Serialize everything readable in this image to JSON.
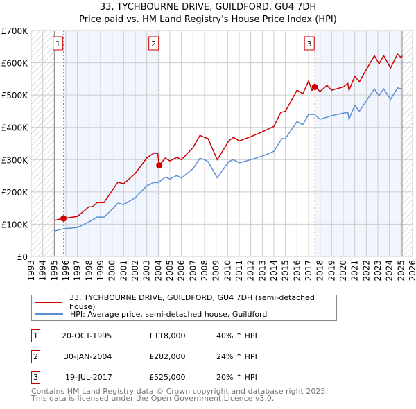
{
  "title": "33, TYCHBOURNE DRIVE, GUILDFORD, GU4 7DH",
  "subtitle": "Price paid vs. HM Land Registry's House Price Index (HPI)",
  "chart_data": {
    "type": "line",
    "title": "33, TYCHBOURNE DRIVE, GUILDFORD, GU4 7DH - Price paid vs. HM Land Registry's House Price Index (HPI)",
    "xlim": [
      1993,
      2026
    ],
    "ylim": [
      0,
      700000
    ],
    "x_ticks": [
      "1993",
      "1994",
      "1995",
      "1996",
      "1997",
      "1998",
      "1999",
      "2000",
      "2001",
      "2002",
      "2003",
      "2004",
      "2005",
      "2006",
      "2007",
      "2008",
      "2009",
      "2010",
      "2011",
      "2012",
      "2013",
      "2014",
      "2015",
      "2016",
      "2017",
      "2018",
      "2019",
      "2020",
      "2021",
      "2022",
      "2023",
      "2024",
      "2025",
      "2026"
    ],
    "y_ticks": [
      {
        "v": 0,
        "label": "£0"
      },
      {
        "v": 100000,
        "label": "£100K"
      },
      {
        "v": 200000,
        "label": "£200K"
      },
      {
        "v": 300000,
        "label": "£300K"
      },
      {
        "v": 400000,
        "label": "£400K"
      },
      {
        "v": 500000,
        "label": "£500K"
      },
      {
        "v": 600000,
        "label": "£600K"
      },
      {
        "v": 700000,
        "label": "£700K"
      }
    ],
    "grid": true,
    "series": [
      {
        "name": "33, TYCHBOURNE DRIVE, GUILDFORD, GU4 7DH (semi-detached house)",
        "color": "#cc0000",
        "x": [
          1995,
          1995.8,
          1997,
          1998,
          1998.3,
          1998.7,
          1999.3,
          2000,
          2000.5,
          2001,
          2002,
          2003,
          2003.6,
          2003.95,
          2004.08,
          2004.6,
          2005,
          2005.6,
          2006,
          2007,
          2007.6,
          2008,
          2008.3,
          2009.1,
          2010.1,
          2010.5,
          2011,
          2012,
          2013,
          2014,
          2014.6,
          2015,
          2016,
          2016.5,
          2017,
          2017.3,
          2017.55,
          2018,
          2018.6,
          2019,
          2020,
          2020.4,
          2020.5,
          2021,
          2021.4,
          2022,
          2022.7,
          2023.1,
          2023.5,
          2024.1,
          2024.7,
          2025,
          2025.1
        ],
        "y": [
          112000,
          118000,
          124000,
          154000,
          154000,
          167000,
          167000,
          204000,
          230000,
          225000,
          257000,
          305000,
          320000,
          320000,
          282000,
          305000,
          296000,
          307000,
          300000,
          337000,
          375000,
          369000,
          365000,
          300000,
          358000,
          369000,
          358000,
          371000,
          386000,
          403000,
          446000,
          450000,
          515000,
          504000,
          543000,
          515000,
          525000,
          511000,
          530000,
          515000,
          525000,
          536000,
          515000,
          558000,
          541000,
          579000,
          622000,
          597000,
          622000,
          584000,
          627000,
          616000,
          622000
        ]
      },
      {
        "name": "HPI: Average price, semi-detached house, Guildford",
        "color": "#5b8fd4",
        "x": [
          1995,
          1995.8,
          1997,
          1998,
          1998.7,
          1999.3,
          2000,
          2000.5,
          2001,
          2002,
          2003,
          2003.6,
          2004,
          2004.6,
          2005,
          2005.6,
          2006,
          2007,
          2007.6,
          2008,
          2008.3,
          2009.1,
          2010.1,
          2010.5,
          2011,
          2012,
          2013,
          2014,
          2014.7,
          2015,
          2016,
          2016.5,
          2017,
          2017.5,
          2018,
          2019,
          2020,
          2020.4,
          2020.5,
          2021,
          2021.4,
          2022,
          2022.7,
          2023.1,
          2023.5,
          2024.1,
          2024.7,
          2025.1
        ],
        "y": [
          79000,
          86000,
          90000,
          107000,
          122000,
          122000,
          146000,
          165000,
          161000,
          182000,
          219000,
          229000,
          229000,
          246000,
          240000,
          251000,
          243000,
          272000,
          304000,
          300000,
          294000,
          244000,
          294000,
          300000,
          290000,
          300000,
          311000,
          326000,
          365000,
          365000,
          418000,
          408000,
          440000,
          440000,
          425000,
          436000,
          444000,
          446000,
          425000,
          468000,
          450000,
          482000,
          519000,
          498000,
          519000,
          487000,
          522000,
          519000
        ]
      }
    ],
    "sales": [
      {
        "id": "1",
        "x": 1995.8,
        "y": 118000
      },
      {
        "id": "2",
        "x": 2004.08,
        "y": 282000
      },
      {
        "id": "3",
        "x": 2017.55,
        "y": 525000
      }
    ],
    "shaded_ranges": [
      [
        1995.8,
        2004.08
      ],
      [
        2017.55,
        2025.1
      ]
    ],
    "hatched_ranges": [
      [
        1993,
        1995
      ],
      [
        2025.1,
        2026
      ]
    ]
  },
  "legend": [
    {
      "label": "33, TYCHBOURNE DRIVE, GUILDFORD, GU4 7DH (semi-detached house)",
      "color": "#cc0000"
    },
    {
      "label": "HPI: Average price, semi-detached house, Guildford",
      "color": "#5b8fd4"
    }
  ],
  "transactions": [
    {
      "id": "1",
      "date": "20-OCT-1995",
      "price": "£118,000",
      "hpi": "40% ↑ HPI"
    },
    {
      "id": "2",
      "date": "30-JAN-2004",
      "price": "£282,000",
      "hpi": "24% ↑ HPI"
    },
    {
      "id": "3",
      "date": "19-JUL-2017",
      "price": "£525,000",
      "hpi": "20% ↑ HPI"
    }
  ],
  "footer": [
    "Contains HM Land Registry data © Crown copyright and database right 2025.",
    "This data is licensed under the Open Government Licence v3.0."
  ]
}
